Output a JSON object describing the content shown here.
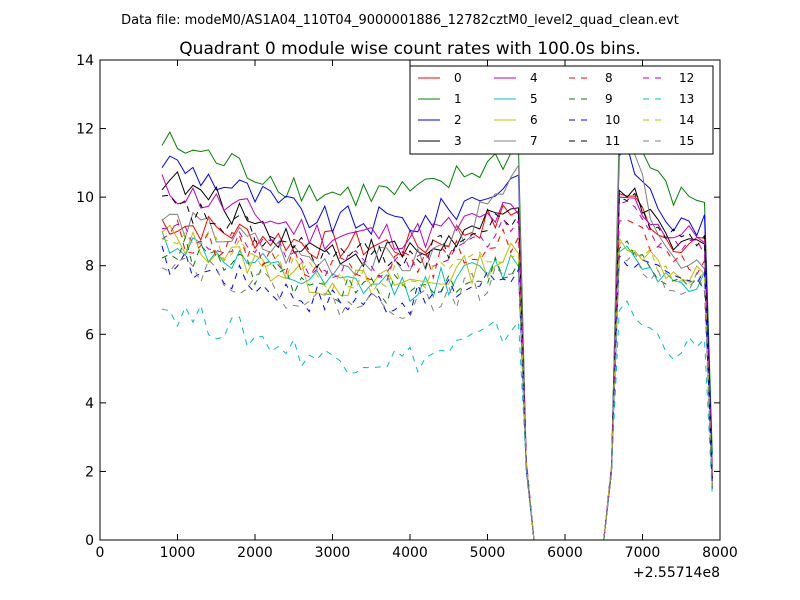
{
  "chart_data": {
    "type": "line",
    "suptitle": "Data file: modeM0/AS1A04_110T04_9000001886_12782cztM0_level2_quad_clean.evt",
    "title": "Quadrant 0 module wise count rates with 100.0s bins.",
    "xlabel": "",
    "ylabel": "",
    "x_offset_label": "+2.55714e8",
    "xlim": [
      0,
      8000
    ],
    "ylim": [
      0,
      14
    ],
    "xticks": [
      0,
      1000,
      2000,
      3000,
      4000,
      5000,
      6000,
      7000,
      8000
    ],
    "yticks": [
      0,
      2,
      4,
      6,
      8,
      10,
      12,
      14
    ],
    "grid": false,
    "legend": {
      "placement": "top-right",
      "columns": 4
    },
    "x": {
      "start": 800,
      "step": 100,
      "segments": [
        [
          800,
          5400
        ],
        [
          5400,
          5600
        ],
        [
          5600,
          6500
        ],
        [
          6500,
          6700
        ],
        [
          6700,
          7900
        ]
      ]
    },
    "gap": {
      "from": 5600,
      "to": 6500,
      "value": 0
    },
    "series": [
      {
        "name": "0",
        "color": "#ff0000",
        "dash": "solid",
        "level": 8.6,
        "edge": 9.3,
        "end": 8.7,
        "peak": 10.1,
        "tail": 1.6
      },
      {
        "name": "1",
        "color": "#008000",
        "dash": "solid",
        "level": 10.1,
        "edge": 11.6,
        "end": 10.0,
        "peak": 12.0,
        "tail": 2.5
      },
      {
        "name": "2",
        "color": "#0000ff",
        "dash": "solid",
        "level": 9.3,
        "edge": 11.1,
        "end": 9.2,
        "peak": 11.2,
        "tail": 2.0
      },
      {
        "name": "3",
        "color": "#000000",
        "dash": "solid",
        "level": 8.4,
        "edge": 10.6,
        "end": 8.6,
        "peak": 10.2,
        "tail": 1.8
      },
      {
        "name": "4",
        "color": "#bf00bf",
        "dash": "solid",
        "level": 8.9,
        "edge": 10.3,
        "end": 8.9,
        "peak": 10.0,
        "tail": 1.9
      },
      {
        "name": "5",
        "color": "#00bfbf",
        "dash": "solid",
        "level": 7.4,
        "edge": 8.8,
        "end": 7.6,
        "peak": 8.4,
        "tail": 1.5
      },
      {
        "name": "6",
        "color": "#bfbf00",
        "dash": "solid",
        "level": 7.5,
        "edge": 8.9,
        "end": 7.8,
        "peak": 8.8,
        "tail": 1.6
      },
      {
        "name": "7",
        "color": "#808080",
        "dash": "solid",
        "level": 8.1,
        "edge": 9.4,
        "end": 8.2,
        "peak": 11.5,
        "tail": 1.7
      },
      {
        "name": "8",
        "color": "#ff0000",
        "dash": "dashed",
        "level": 8.0,
        "edge": 9.0,
        "end": 8.0,
        "peak": 9.3,
        "tail": 1.6
      },
      {
        "name": "9",
        "color": "#008000",
        "dash": "dashed",
        "level": 7.3,
        "edge": 8.6,
        "end": 7.4,
        "peak": 8.5,
        "tail": 1.5
      },
      {
        "name": "10",
        "color": "#0000ff",
        "dash": "dashed",
        "level": 7.0,
        "edge": 8.2,
        "end": 7.5,
        "peak": 8.3,
        "tail": 1.5
      },
      {
        "name": "11",
        "color": "#000000",
        "dash": "dashed",
        "level": 8.3,
        "edge": 9.8,
        "end": 8.8,
        "peak": 10.0,
        "tail": 1.8
      },
      {
        "name": "12",
        "color": "#bf00bf",
        "dash": "dashed",
        "level": 8.1,
        "edge": 9.0,
        "end": 8.5,
        "peak": 9.8,
        "tail": 1.7
      },
      {
        "name": "13",
        "color": "#00bfbf",
        "dash": "dashed",
        "level": 5.3,
        "edge": 6.8,
        "end": 5.6,
        "peak": 6.7,
        "tail": 1.3
      },
      {
        "name": "14",
        "color": "#bfbf00",
        "dash": "dashed",
        "level": 7.6,
        "edge": 9.0,
        "end": 7.8,
        "peak": 8.7,
        "tail": 1.6
      },
      {
        "name": "15",
        "color": "#808080",
        "dash": "dashed",
        "level": 6.9,
        "edge": 8.3,
        "end": 7.5,
        "peak": 8.2,
        "tail": 1.5
      }
    ]
  }
}
